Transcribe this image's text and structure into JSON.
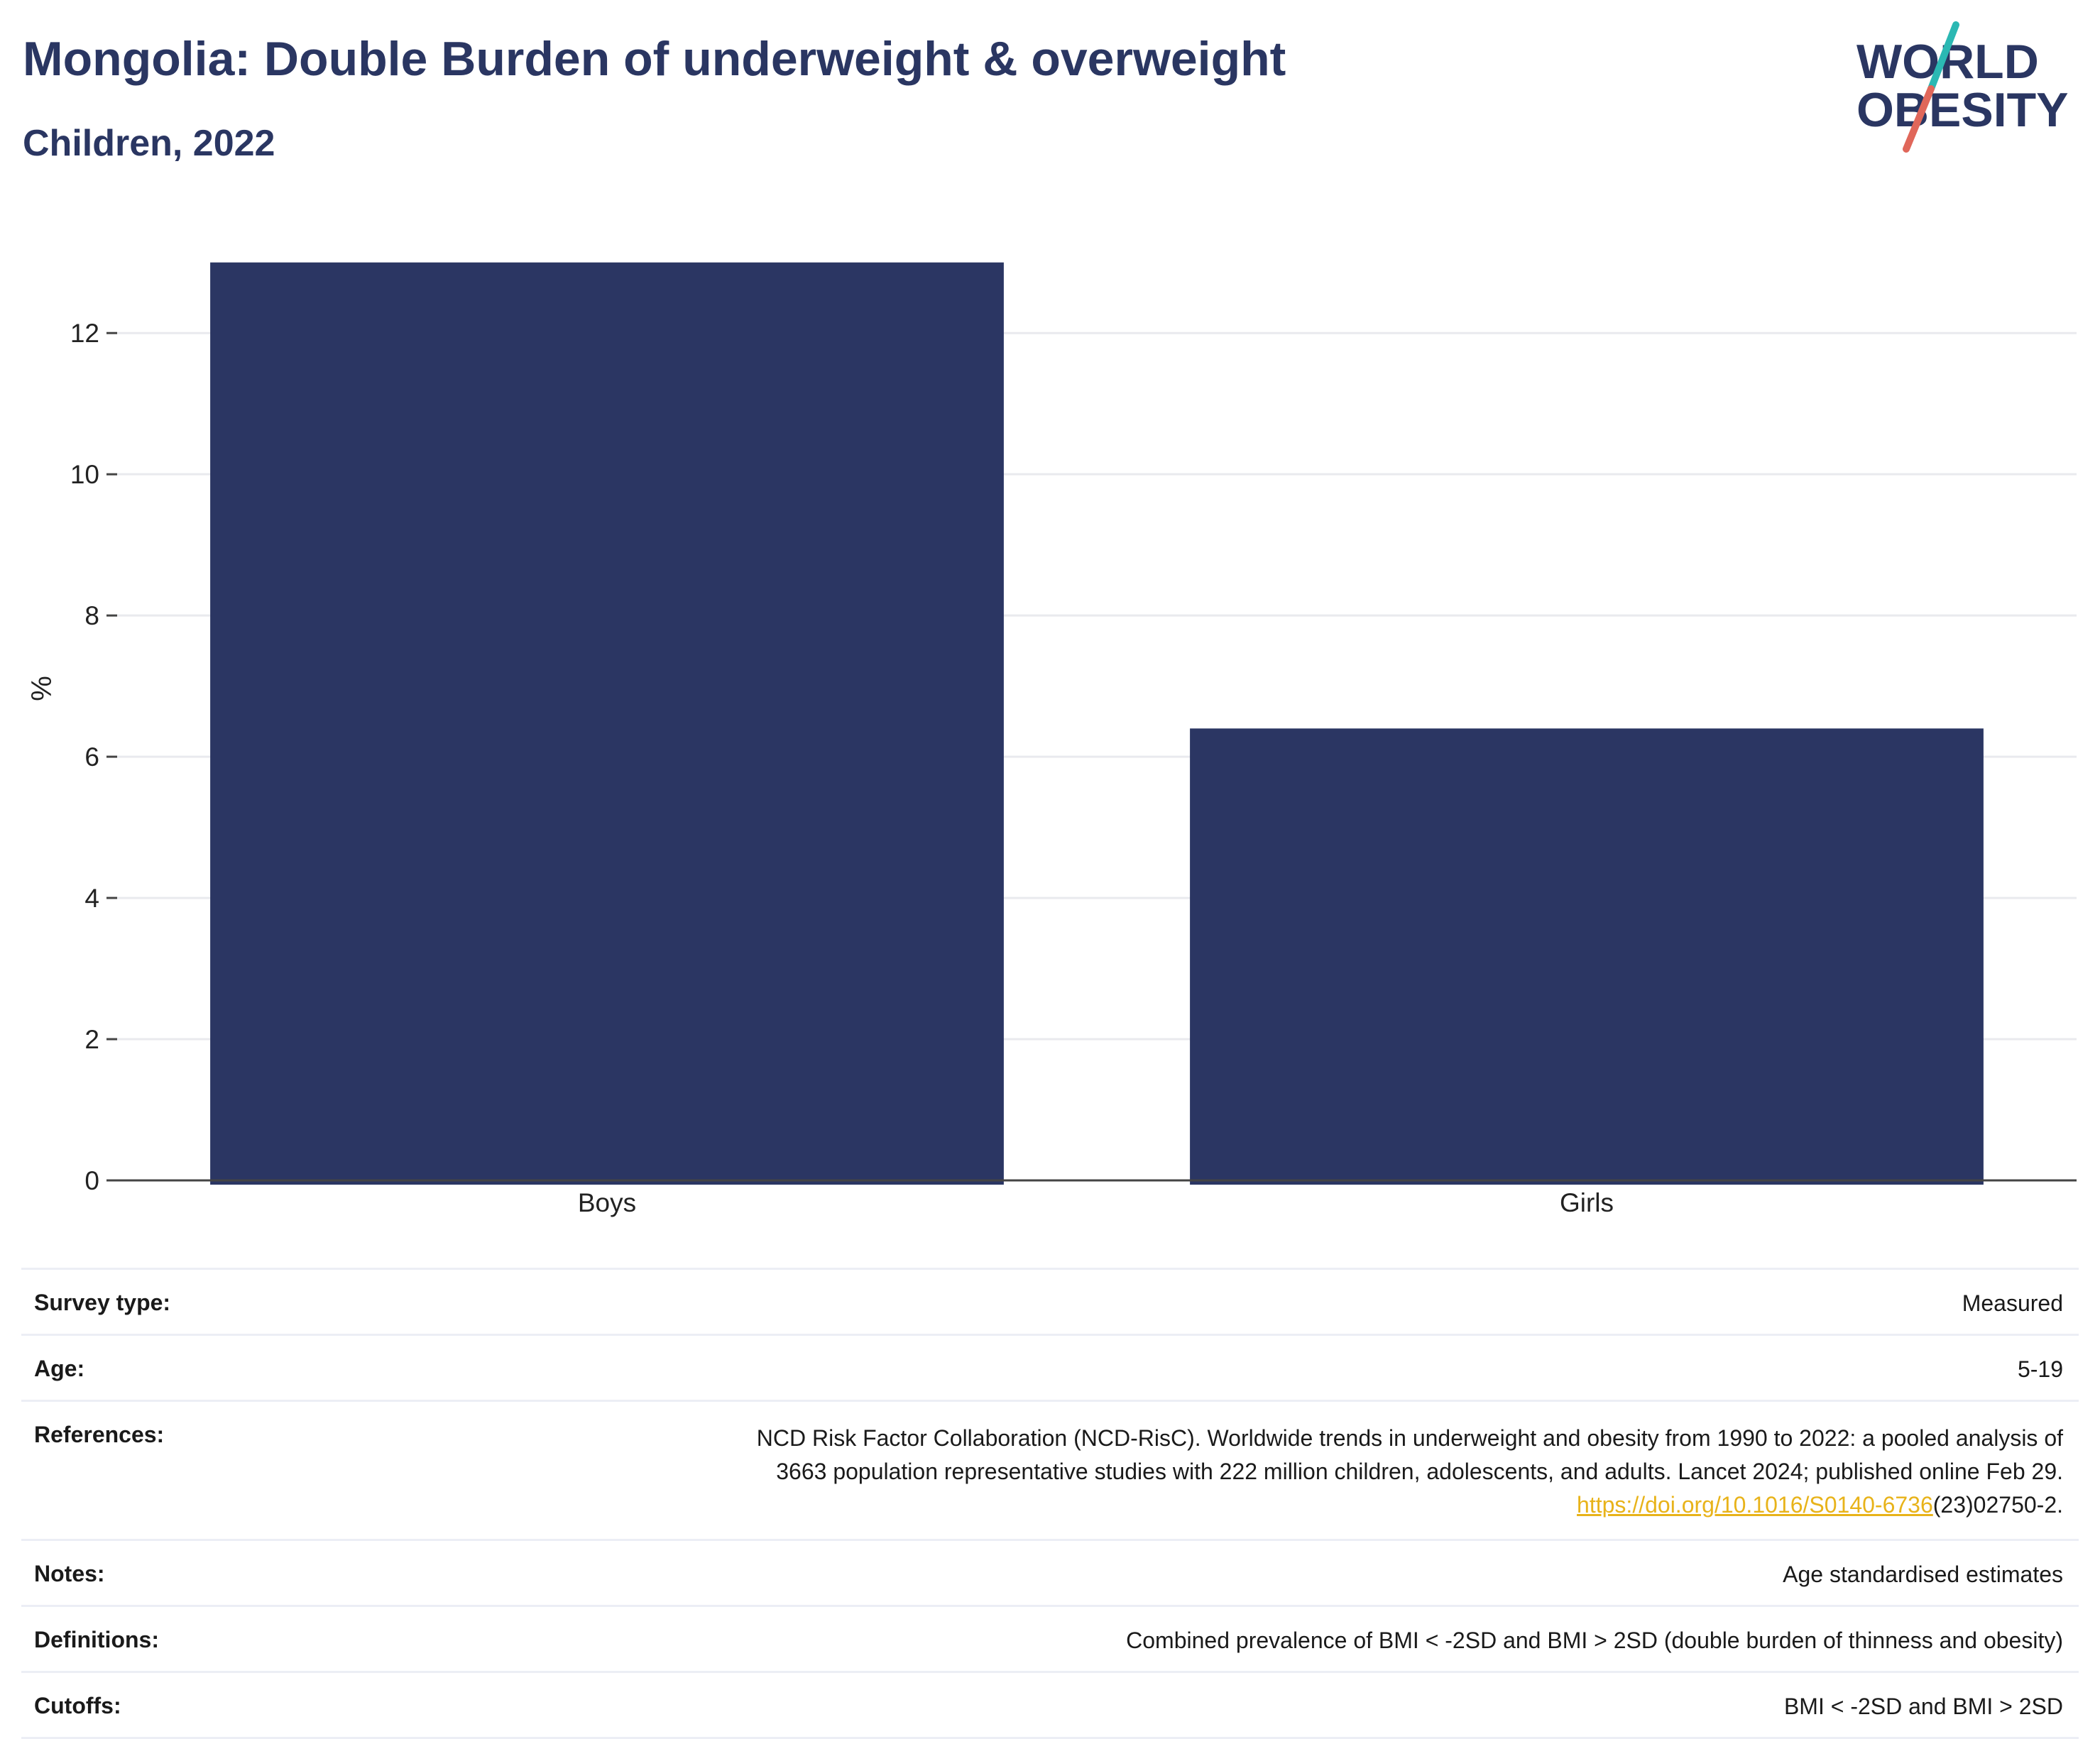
{
  "header": {
    "title": "Mongolia: Double Burden of underweight & overweight",
    "subtitle": "Children, 2022"
  },
  "logo": {
    "line1": "WORLD",
    "line2": "OBESITY"
  },
  "colors": {
    "bar": "#2b3663",
    "title": "#2a3662",
    "accent_red": "#e0675a",
    "accent_teal": "#2bb8b3",
    "link": "#e8b31a"
  },
  "chart_data": {
    "type": "bar",
    "categories": [
      "Boys",
      "Girls"
    ],
    "values": [
      13.0,
      6.4
    ],
    "ylabel": "%",
    "xlabel": "",
    "ylim": [
      0,
      13.5
    ],
    "yticks": [
      0,
      2,
      4,
      6,
      8,
      10,
      12
    ],
    "grid": true,
    "legend": "none"
  },
  "info": {
    "survey_type": {
      "label": "Survey type:",
      "value": "Measured"
    },
    "age": {
      "label": "Age:",
      "value": "5-19"
    },
    "references": {
      "label": "References:",
      "line1": "NCD Risk Factor Collaboration (NCD-RisC). Worldwide trends in underweight and obesity from 1990 to 2022: a pooled analysis of",
      "line2": "3663 population representative studies with 222 million children, adolescents, and adults. Lancet 2024; published online Feb 29.",
      "link": "https://doi.org/10.1016/S0140-6736",
      "suffix": "(23)02750-2."
    },
    "notes": {
      "label": "Notes:",
      "value": "Age standardised estimates"
    },
    "definitions": {
      "label": "Definitions:",
      "value": "Combined prevalence of BMI < -2SD and BMI > 2SD (double burden of thinness and obesity)"
    },
    "cutoffs": {
      "label": "Cutoffs:",
      "value": "BMI < -2SD and BMI > 2SD"
    }
  }
}
